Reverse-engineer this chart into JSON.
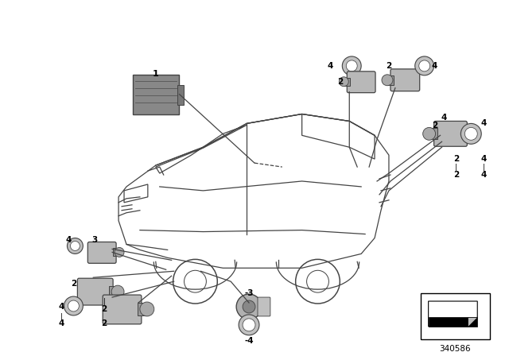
{
  "background_color": "#ffffff",
  "line_color": "#666666",
  "fig_width": 6.4,
  "fig_height": 4.48,
  "dpi": 100,
  "diagram_number": "340586"
}
